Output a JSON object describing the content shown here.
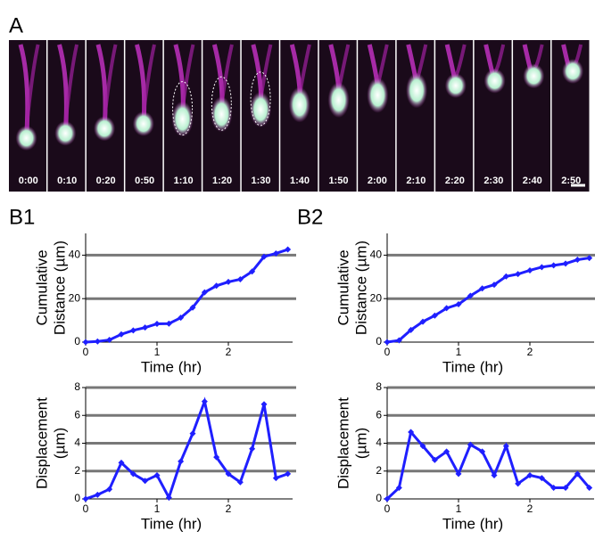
{
  "panel_labels": [
    "A",
    "B1",
    "B2"
  ],
  "frame_times": [
    "0:00",
    "0:10",
    "0:20",
    "0:50",
    "1:10",
    "1:20",
    "1:30",
    "1:40",
    "1:50",
    "2:00",
    "2:10",
    "2:20",
    "2:30",
    "2:40",
    "2:50"
  ],
  "chart_data": [
    {
      "type": "line",
      "ylabel": [
        "Cumulative",
        "Distance (µm)"
      ],
      "xlabel": "Time (hr)",
      "x": [
        0,
        0.167,
        0.333,
        0.5,
        0.667,
        0.833,
        1,
        1.167,
        1.333,
        1.5,
        1.667,
        1.833,
        2,
        2.167,
        2.333,
        2.5,
        2.667,
        2.833
      ],
      "series": [
        {
          "color": "#1f1fff",
          "values": [
            0,
            0.3,
            1.0,
            3.6,
            5.4,
            6.7,
            8.4,
            8.5,
            11.2,
            15.9,
            22.9,
            25.9,
            27.7,
            28.9,
            32.5,
            39.3,
            40.8,
            42.6
          ]
        }
      ],
      "xlim": [
        0,
        2.9
      ],
      "ylim": [
        0,
        50
      ],
      "xticks": [
        0,
        1,
        2
      ],
      "yticks": [
        0,
        20,
        40
      ],
      "grid": true
    },
    {
      "type": "line",
      "ylabel": [
        "Displacement",
        "(µm)"
      ],
      "xlabel": "Time (hr)",
      "x": [
        0,
        0.167,
        0.333,
        0.5,
        0.667,
        0.833,
        1,
        1.167,
        1.333,
        1.5,
        1.667,
        1.833,
        2,
        2.167,
        2.333,
        2.5,
        2.667,
        2.833
      ],
      "series": [
        {
          "color": "#1f1fff",
          "values": [
            0,
            0.3,
            0.7,
            2.6,
            1.8,
            1.3,
            1.7,
            0.1,
            2.7,
            4.7,
            7.0,
            3.0,
            1.8,
            1.2,
            3.6,
            6.8,
            1.5,
            1.8
          ]
        }
      ],
      "xlim": [
        0,
        2.9
      ],
      "ylim": [
        0,
        8
      ],
      "xticks": [
        0,
        1,
        2
      ],
      "yticks": [
        0,
        2,
        4,
        6,
        8
      ],
      "grid": true
    },
    {
      "type": "line",
      "ylabel": [
        "Cumulative",
        "Distance (µm)"
      ],
      "xlabel": "Time (hr)",
      "x": [
        0,
        0.167,
        0.333,
        0.5,
        0.667,
        0.833,
        1,
        1.167,
        1.333,
        1.5,
        1.667,
        1.833,
        2,
        2.167,
        2.333,
        2.5,
        2.667,
        2.833
      ],
      "series": [
        {
          "color": "#1f1fff",
          "values": [
            0,
            0.8,
            5.6,
            9.4,
            12.2,
            15.6,
            17.4,
            21.3,
            24.7,
            26.4,
            30.2,
            31.3,
            33.0,
            34.5,
            35.3,
            36.1,
            37.9,
            38.7
          ]
        }
      ],
      "xlim": [
        0,
        2.9
      ],
      "ylim": [
        0,
        50
      ],
      "xticks": [
        0,
        1,
        2
      ],
      "yticks": [
        0,
        20,
        40
      ],
      "grid": true
    },
    {
      "type": "line",
      "ylabel": [
        "Displacement",
        "(µm)"
      ],
      "xlabel": "Time (hr)",
      "x": [
        0,
        0.167,
        0.333,
        0.5,
        0.667,
        0.833,
        1,
        1.167,
        1.333,
        1.5,
        1.667,
        1.833,
        2,
        2.167,
        2.333,
        2.5,
        2.667,
        2.833
      ],
      "series": [
        {
          "color": "#1f1fff",
          "values": [
            0,
            0.8,
            4.8,
            3.8,
            2.8,
            3.4,
            1.8,
            3.9,
            3.4,
            1.7,
            3.8,
            1.1,
            1.7,
            1.5,
            0.8,
            0.8,
            1.8,
            0.8
          ]
        }
      ],
      "xlim": [
        0,
        2.9
      ],
      "ylim": [
        0,
        8
      ],
      "xticks": [
        0,
        1,
        2
      ],
      "yticks": [
        0,
        2,
        4,
        6,
        8
      ],
      "grid": true
    }
  ]
}
